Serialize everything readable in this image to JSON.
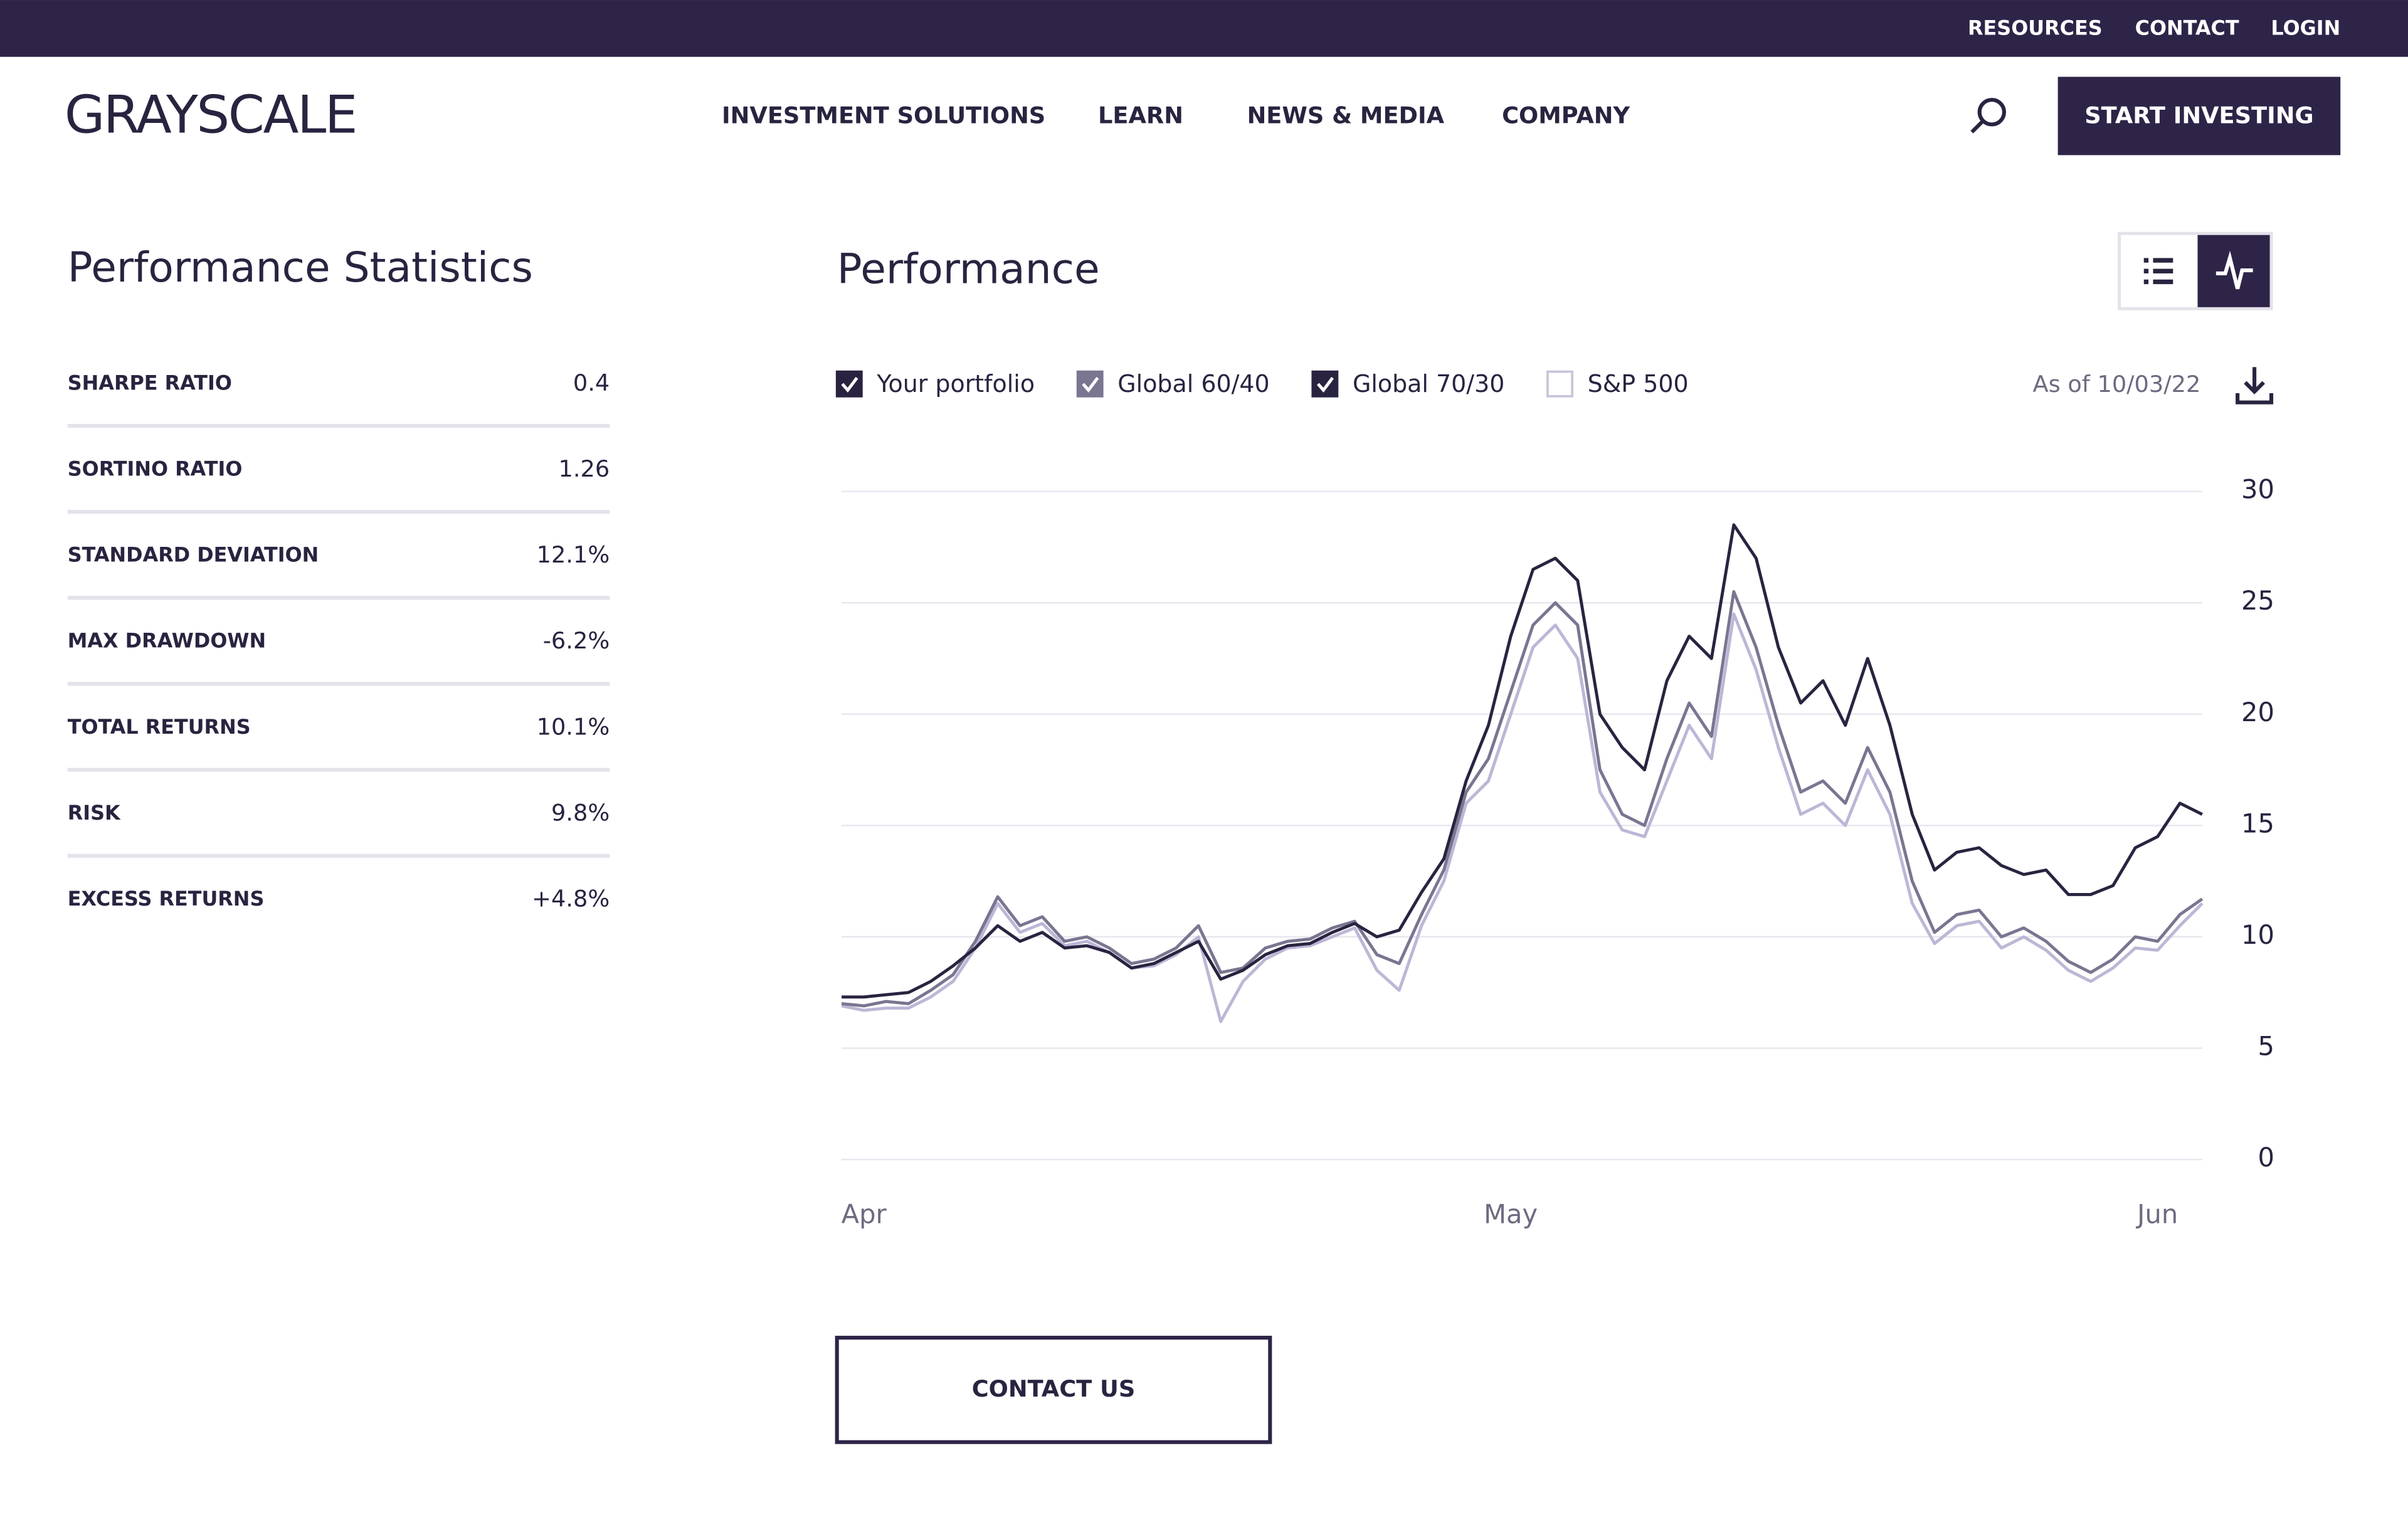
{
  "top_bar": {
    "links": [
      "RESOURCES",
      "CONTACT",
      "LOGIN"
    ]
  },
  "header": {
    "logo": "GRAYSCALE",
    "nav": [
      "INVESTMENT SOLUTIONS",
      "LEARN",
      "NEWS & MEDIA",
      "COMPANY"
    ],
    "cta": "START INVESTING"
  },
  "stats": {
    "title": "Performance Statistics",
    "rows": [
      {
        "label": "SHARPE RATIO",
        "value": "0.4"
      },
      {
        "label": "SORTINO RATIO",
        "value": "1.26"
      },
      {
        "label": "STANDARD DEVIATION",
        "value": "12.1%"
      },
      {
        "label": "MAX DRAWDOWN",
        "value": "-6.2%"
      },
      {
        "label": "TOTAL RETURNS",
        "value": "10.1%"
      },
      {
        "label": "RISK",
        "value": "9.8%"
      },
      {
        "label": "EXCESS RETURNS",
        "value": "+4.8%"
      }
    ]
  },
  "chart_data": {
    "type": "line",
    "title": "Performance",
    "as_of": "As of 10/03/22",
    "categories": [
      null,
      "Apr",
      null,
      null,
      null,
      null,
      null,
      null,
      null,
      null,
      null,
      null,
      null,
      null,
      null,
      null,
      null,
      null,
      null,
      null,
      null,
      null,
      null,
      null,
      null,
      null,
      null,
      null,
      null,
      null,
      "May",
      null,
      null,
      null,
      null,
      null,
      null,
      null,
      null,
      null,
      null,
      null,
      null,
      null,
      null,
      null,
      null,
      null,
      null,
      null,
      null,
      null,
      null,
      null,
      null,
      null,
      null,
      null,
      null,
      "Jun",
      null,
      null
    ],
    "series": [
      {
        "name": "Global 70/30",
        "color": "#bdb6d6",
        "checkbox": "#2a2340",
        "checked": true,
        "values": [
          6.9,
          6.7,
          6.8,
          6.8,
          7.3,
          8.0,
          9.5,
          11.5,
          10.2,
          10.6,
          9.6,
          9.8,
          9.3,
          8.6,
          8.7,
          9.2,
          10.0,
          6.2,
          8.0,
          9.0,
          9.5,
          9.6,
          10.0,
          10.4,
          8.5,
          7.6,
          10.5,
          12.5,
          16.0,
          17.0,
          20.0,
          23.0,
          24.0,
          22.5,
          16.5,
          14.8,
          14.5,
          17.0,
          19.5,
          18.0,
          24.5,
          22.0,
          18.5,
          15.5,
          16.0,
          15.0,
          17.5,
          15.5,
          11.5,
          9.7,
          10.5,
          10.7,
          9.5,
          10.0,
          9.4,
          8.5,
          8.0,
          8.6,
          9.5,
          9.4,
          10.5,
          11.5
        ]
      },
      {
        "name": "Global 60/40",
        "color": "#7a7590",
        "checkbox": "#7a7590",
        "checked": true,
        "values": [
          7.0,
          6.9,
          7.1,
          7.0,
          7.6,
          8.3,
          9.8,
          11.8,
          10.5,
          10.9,
          9.8,
          10.0,
          9.5,
          8.8,
          9.0,
          9.5,
          10.5,
          8.4,
          8.6,
          9.5,
          9.8,
          9.9,
          10.4,
          10.7,
          9.2,
          8.8,
          11.0,
          13.0,
          16.5,
          18.0,
          21.0,
          24.0,
          25.0,
          24.0,
          17.5,
          15.5,
          15.0,
          18.0,
          20.5,
          19.0,
          25.5,
          23.0,
          19.5,
          16.5,
          17.0,
          16.0,
          18.5,
          16.5,
          12.5,
          10.2,
          11.0,
          11.2,
          10.0,
          10.4,
          9.8,
          8.9,
          8.4,
          9.0,
          10.0,
          9.8,
          11.0,
          11.7
        ]
      },
      {
        "name": "Your portfolio",
        "color": "#2a2340",
        "checkbox": "#2a2340",
        "checked": true,
        "values": [
          7.3,
          7.3,
          7.4,
          7.5,
          8.0,
          8.7,
          9.5,
          10.5,
          9.8,
          10.2,
          9.5,
          9.6,
          9.3,
          8.6,
          8.8,
          9.3,
          9.8,
          8.1,
          8.5,
          9.2,
          9.6,
          9.7,
          10.2,
          10.6,
          10.0,
          10.3,
          12.0,
          13.5,
          17.0,
          19.5,
          23.5,
          26.5,
          27.0,
          26.0,
          20.0,
          18.5,
          17.5,
          21.5,
          23.5,
          22.5,
          28.5,
          27.0,
          23.0,
          20.5,
          21.5,
          19.5,
          22.5,
          19.5,
          15.5,
          13.0,
          13.8,
          14.0,
          13.2,
          12.8,
          13.0,
          11.9,
          11.9,
          12.3,
          14.0,
          14.5,
          16.0,
          15.5
        ]
      },
      {
        "name": "S&P 500",
        "color": "#c9c3dc",
        "checkbox": "#c9c3dc",
        "checked": false
      }
    ],
    "legend_order": [
      2,
      1,
      0,
      3
    ],
    "ylim": [
      0,
      30
    ],
    "yticks": [
      0,
      5,
      10,
      15,
      20,
      25,
      30
    ],
    "grid": true
  },
  "contact_button": "CONTACT US"
}
